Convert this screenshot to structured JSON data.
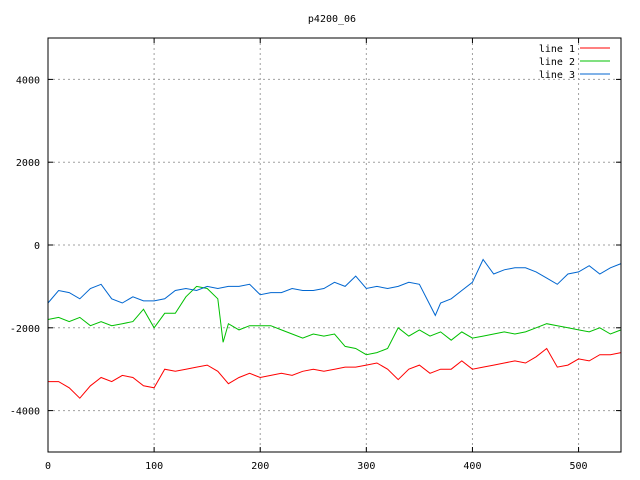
{
  "chart_data": {
    "type": "line",
    "title": "p4200_06",
    "xlabel": "",
    "ylabel": "",
    "xlim": [
      0,
      540
    ],
    "ylim": [
      -5000,
      5000
    ],
    "xticks": [
      0,
      100,
      200,
      300,
      400,
      500
    ],
    "yticks": [
      -4000,
      -2000,
      0,
      2000,
      4000
    ],
    "grid": true,
    "legend_position": "top-right",
    "series": [
      {
        "name": "line 1",
        "color": "#ff0000",
        "points": [
          [
            0,
            -3300
          ],
          [
            10,
            -3300
          ],
          [
            20,
            -3450
          ],
          [
            30,
            -3700
          ],
          [
            40,
            -3400
          ],
          [
            50,
            -3200
          ],
          [
            60,
            -3300
          ],
          [
            70,
            -3150
          ],
          [
            80,
            -3200
          ],
          [
            90,
            -3400
          ],
          [
            100,
            -3450
          ],
          [
            110,
            -3000
          ],
          [
            120,
            -3050
          ],
          [
            130,
            -3000
          ],
          [
            140,
            -2950
          ],
          [
            150,
            -2900
          ],
          [
            160,
            -3050
          ],
          [
            170,
            -3350
          ],
          [
            180,
            -3200
          ],
          [
            190,
            -3100
          ],
          [
            200,
            -3200
          ],
          [
            210,
            -3150
          ],
          [
            220,
            -3100
          ],
          [
            230,
            -3150
          ],
          [
            240,
            -3050
          ],
          [
            250,
            -3000
          ],
          [
            260,
            -3050
          ],
          [
            270,
            -3000
          ],
          [
            280,
            -2950
          ],
          [
            290,
            -2950
          ],
          [
            300,
            -2900
          ],
          [
            310,
            -2850
          ],
          [
            320,
            -3000
          ],
          [
            330,
            -3250
          ],
          [
            340,
            -3000
          ],
          [
            350,
            -2900
          ],
          [
            360,
            -3100
          ],
          [
            370,
            -3000
          ],
          [
            380,
            -3000
          ],
          [
            390,
            -2800
          ],
          [
            400,
            -3000
          ],
          [
            410,
            -2950
          ],
          [
            420,
            -2900
          ],
          [
            430,
            -2850
          ],
          [
            440,
            -2800
          ],
          [
            450,
            -2850
          ],
          [
            460,
            -2700
          ],
          [
            470,
            -2500
          ],
          [
            480,
            -2950
          ],
          [
            490,
            -2900
          ],
          [
            500,
            -2750
          ],
          [
            510,
            -2800
          ],
          [
            520,
            -2650
          ],
          [
            530,
            -2650
          ],
          [
            540,
            -2600
          ]
        ]
      },
      {
        "name": "line 2",
        "color": "#00c000",
        "points": [
          [
            0,
            -1800
          ],
          [
            10,
            -1750
          ],
          [
            20,
            -1850
          ],
          [
            30,
            -1750
          ],
          [
            40,
            -1950
          ],
          [
            50,
            -1850
          ],
          [
            60,
            -1950
          ],
          [
            70,
            -1900
          ],
          [
            80,
            -1850
          ],
          [
            90,
            -1550
          ],
          [
            100,
            -2000
          ],
          [
            110,
            -1650
          ],
          [
            120,
            -1650
          ],
          [
            130,
            -1250
          ],
          [
            140,
            -1000
          ],
          [
            150,
            -1050
          ],
          [
            160,
            -1300
          ],
          [
            165,
            -2350
          ],
          [
            170,
            -1900
          ],
          [
            180,
            -2050
          ],
          [
            190,
            -1950
          ],
          [
            200,
            -1950
          ],
          [
            210,
            -1950
          ],
          [
            220,
            -2050
          ],
          [
            230,
            -2150
          ],
          [
            240,
            -2250
          ],
          [
            250,
            -2150
          ],
          [
            260,
            -2200
          ],
          [
            270,
            -2150
          ],
          [
            280,
            -2450
          ],
          [
            290,
            -2500
          ],
          [
            300,
            -2650
          ],
          [
            310,
            -2600
          ],
          [
            320,
            -2500
          ],
          [
            330,
            -2000
          ],
          [
            340,
            -2200
          ],
          [
            350,
            -2050
          ],
          [
            360,
            -2200
          ],
          [
            370,
            -2100
          ],
          [
            380,
            -2300
          ],
          [
            390,
            -2100
          ],
          [
            400,
            -2250
          ],
          [
            410,
            -2200
          ],
          [
            420,
            -2150
          ],
          [
            430,
            -2100
          ],
          [
            440,
            -2150
          ],
          [
            450,
            -2100
          ],
          [
            460,
            -2000
          ],
          [
            470,
            -1900
          ],
          [
            480,
            -1950
          ],
          [
            490,
            -2000
          ],
          [
            500,
            -2050
          ],
          [
            510,
            -2100
          ],
          [
            520,
            -2000
          ],
          [
            530,
            -2150
          ],
          [
            540,
            -2050
          ]
        ]
      },
      {
        "name": "line 3",
        "color": "#0066d0",
        "points": [
          [
            0,
            -1400
          ],
          [
            10,
            -1100
          ],
          [
            20,
            -1150
          ],
          [
            30,
            -1300
          ],
          [
            40,
            -1050
          ],
          [
            50,
            -950
          ],
          [
            60,
            -1300
          ],
          [
            70,
            -1400
          ],
          [
            80,
            -1250
          ],
          [
            90,
            -1350
          ],
          [
            100,
            -1350
          ],
          [
            110,
            -1300
          ],
          [
            120,
            -1100
          ],
          [
            130,
            -1050
          ],
          [
            140,
            -1100
          ],
          [
            150,
            -1000
          ],
          [
            160,
            -1050
          ],
          [
            170,
            -1000
          ],
          [
            180,
            -1000
          ],
          [
            190,
            -950
          ],
          [
            200,
            -1200
          ],
          [
            210,
            -1150
          ],
          [
            220,
            -1150
          ],
          [
            230,
            -1050
          ],
          [
            240,
            -1100
          ],
          [
            250,
            -1100
          ],
          [
            260,
            -1050
          ],
          [
            270,
            -900
          ],
          [
            280,
            -1000
          ],
          [
            290,
            -750
          ],
          [
            300,
            -1050
          ],
          [
            310,
            -1000
          ],
          [
            320,
            -1050
          ],
          [
            330,
            -1000
          ],
          [
            340,
            -900
          ],
          [
            350,
            -950
          ],
          [
            360,
            -1450
          ],
          [
            365,
            -1700
          ],
          [
            370,
            -1400
          ],
          [
            380,
            -1300
          ],
          [
            390,
            -1100
          ],
          [
            400,
            -900
          ],
          [
            410,
            -350
          ],
          [
            420,
            -700
          ],
          [
            430,
            -600
          ],
          [
            440,
            -550
          ],
          [
            450,
            -550
          ],
          [
            460,
            -650
          ],
          [
            470,
            -800
          ],
          [
            480,
            -950
          ],
          [
            490,
            -700
          ],
          [
            500,
            -650
          ],
          [
            510,
            -500
          ],
          [
            520,
            -700
          ],
          [
            530,
            -550
          ],
          [
            540,
            -450
          ]
        ]
      }
    ]
  }
}
